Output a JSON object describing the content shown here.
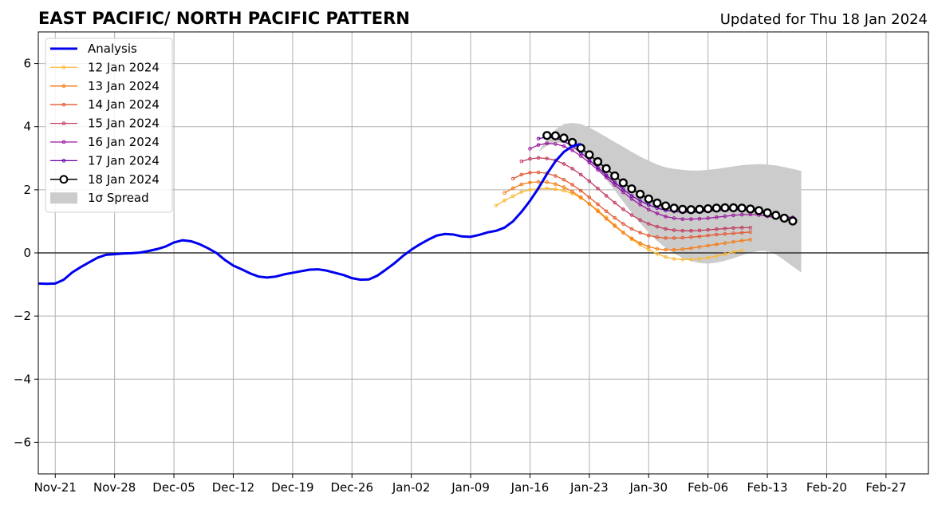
{
  "chart_data": {
    "type": "line",
    "title": "EAST PACIFIC/ NORTH PACIFIC PATTERN",
    "subtitle": "Updated for Thu 18 Jan 2024",
    "xlabel": "",
    "ylabel": "",
    "xlim": [
      "2023-11-19",
      "2024-03-03"
    ],
    "ylim": [
      -7,
      7
    ],
    "yticks": [
      -6,
      -4,
      -2,
      0,
      2,
      4,
      6
    ],
    "ytick_labels": [
      "−6",
      "−4",
      "−2",
      "0",
      "2",
      "4",
      "6"
    ],
    "xticks": [
      "2023-11-21",
      "2023-11-28",
      "2023-12-05",
      "2023-12-12",
      "2023-12-19",
      "2023-12-26",
      "2024-01-02",
      "2024-01-09",
      "2024-01-16",
      "2024-01-23",
      "2024-01-30",
      "2024-02-06",
      "2024-02-13",
      "2024-02-20",
      "2024-02-27"
    ],
    "xtick_labels": [
      "Nov-21",
      "Nov-28",
      "Dec-05",
      "Dec-12",
      "Dec-19",
      "Dec-26",
      "Jan-02",
      "Jan-09",
      "Jan-16",
      "Jan-23",
      "Jan-30",
      "Feb-06",
      "Feb-13",
      "Feb-20",
      "Feb-27"
    ],
    "grid": true,
    "legend_position": "top-left",
    "analysis": {
      "name": "Analysis",
      "color": "#0000ee",
      "start": "2023-11-19",
      "values": [
        -0.97,
        -0.98,
        -0.97,
        -0.85,
        -0.62,
        -0.45,
        -0.3,
        -0.15,
        -0.06,
        -0.04,
        -0.02,
        -0.01,
        0.01,
        0.06,
        0.12,
        0.2,
        0.33,
        0.4,
        0.37,
        0.28,
        0.15,
        0.0,
        -0.22,
        -0.4,
        -0.52,
        -0.65,
        -0.75,
        -0.78,
        -0.75,
        -0.68,
        -0.63,
        -0.58,
        -0.53,
        -0.52,
        -0.56,
        -0.63,
        -0.7,
        -0.8,
        -0.85,
        -0.84,
        -0.72,
        -0.53,
        -0.33,
        -0.1,
        0.1,
        0.27,
        0.42,
        0.55,
        0.6,
        0.58,
        0.52,
        0.51,
        0.57,
        0.65,
        0.7,
        0.8,
        1.0,
        1.3,
        1.65,
        2.05,
        2.5,
        2.9,
        3.2,
        3.38,
        3.45
      ]
    },
    "spread": {
      "name": "1σ Spread",
      "color": "#cccccc",
      "start": "2024-01-17",
      "upper": [
        3.2,
        3.6,
        3.9,
        4.08,
        4.12,
        4.08,
        3.97,
        3.83,
        3.67,
        3.51,
        3.36,
        3.2,
        3.05,
        2.92,
        2.8,
        2.71,
        2.66,
        2.63,
        2.61,
        2.61,
        2.63,
        2.66,
        2.7,
        2.74,
        2.78,
        2.8,
        2.81,
        2.8,
        2.77,
        2.72,
        2.66,
        2.6
      ],
      "lower": [
        3.2,
        3.4,
        3.5,
        3.48,
        3.38,
        3.2,
        2.95,
        2.65,
        2.32,
        1.98,
        1.62,
        1.27,
        0.94,
        0.64,
        0.38,
        0.16,
        -0.02,
        -0.16,
        -0.26,
        -0.32,
        -0.34,
        -0.31,
        -0.25,
        -0.17,
        -0.08,
        0.01,
        0.06,
        0.06,
        -0.05,
        -0.23,
        -0.43,
        -0.62
      ]
    },
    "forecasts": [
      {
        "name": "12 Jan 2024",
        "color": "#fbb836",
        "start": "2024-01-12",
        "values": [
          1.5,
          1.66,
          1.8,
          1.93,
          2.0,
          2.03,
          2.04,
          2.02,
          1.97,
          1.88,
          1.74,
          1.56,
          1.35,
          1.12,
          0.88,
          0.65,
          0.43,
          0.25,
          0.1,
          -0.03,
          -0.13,
          -0.19,
          -0.21,
          -0.21,
          -0.19,
          -0.15,
          -0.1,
          -0.04,
          0.03,
          0.08
        ]
      },
      {
        "name": "13 Jan 2024",
        "color": "#f57d15",
        "start": "2024-01-13",
        "values": [
          1.9,
          2.05,
          2.17,
          2.23,
          2.25,
          2.24,
          2.18,
          2.08,
          1.94,
          1.76,
          1.55,
          1.32,
          1.08,
          0.85,
          0.64,
          0.46,
          0.31,
          0.2,
          0.13,
          0.1,
          0.1,
          0.12,
          0.15,
          0.19,
          0.23,
          0.27,
          0.31,
          0.35,
          0.39,
          0.42
        ]
      },
      {
        "name": "14 Jan 2024",
        "color": "#e35933",
        "start": "2024-01-14",
        "values": [
          2.35,
          2.48,
          2.54,
          2.55,
          2.52,
          2.44,
          2.32,
          2.16,
          1.97,
          1.76,
          1.54,
          1.32,
          1.11,
          0.92,
          0.76,
          0.64,
          0.55,
          0.5,
          0.47,
          0.47,
          0.48,
          0.5,
          0.52,
          0.55,
          0.58,
          0.6,
          0.62,
          0.64,
          0.66
        ]
      },
      {
        "name": "15 Jan 2024",
        "color": "#c13a5f",
        "start": "2024-01-15",
        "values": [
          2.9,
          2.98,
          3.01,
          2.99,
          2.93,
          2.82,
          2.67,
          2.48,
          2.27,
          2.04,
          1.81,
          1.59,
          1.38,
          1.2,
          1.04,
          0.92,
          0.83,
          0.76,
          0.72,
          0.7,
          0.7,
          0.71,
          0.73,
          0.75,
          0.77,
          0.79,
          0.8,
          0.8
        ]
      },
      {
        "name": "16 Jan 2024",
        "color": "#9c179e",
        "start": "2024-01-16",
        "values": [
          3.3,
          3.42,
          3.47,
          3.45,
          3.38,
          3.25,
          3.07,
          2.86,
          2.63,
          2.39,
          2.15,
          1.92,
          1.71,
          1.53,
          1.37,
          1.25,
          1.15,
          1.1,
          1.07,
          1.07,
          1.08,
          1.1,
          1.13,
          1.16,
          1.19,
          1.21,
          1.22,
          1.2,
          1.16,
          1.12,
          1.1
        ]
      },
      {
        "name": "17 Jan 2024",
        "color": "#6a00a8",
        "start": "2024-01-17",
        "values": [
          3.62,
          3.67,
          3.64,
          3.54,
          3.38,
          3.17,
          2.94,
          2.7,
          2.46,
          2.23,
          2.01,
          1.81,
          1.65,
          1.52,
          1.42,
          1.35,
          1.31,
          1.29,
          1.29,
          1.3,
          1.32,
          1.34,
          1.36,
          1.37,
          1.37,
          1.35,
          1.31,
          1.25,
          1.2,
          1.15,
          1.12
        ]
      },
      {
        "name": "18 Jan 2024",
        "color": "#000000",
        "start": "2024-01-18",
        "values": [
          3.72,
          3.71,
          3.64,
          3.5,
          3.32,
          3.11,
          2.89,
          2.67,
          2.44,
          2.22,
          2.03,
          1.86,
          1.71,
          1.58,
          1.49,
          1.42,
          1.38,
          1.37,
          1.38,
          1.4,
          1.42,
          1.43,
          1.43,
          1.42,
          1.39,
          1.34,
          1.27,
          1.19,
          1.1,
          1.01
        ]
      }
    ]
  }
}
